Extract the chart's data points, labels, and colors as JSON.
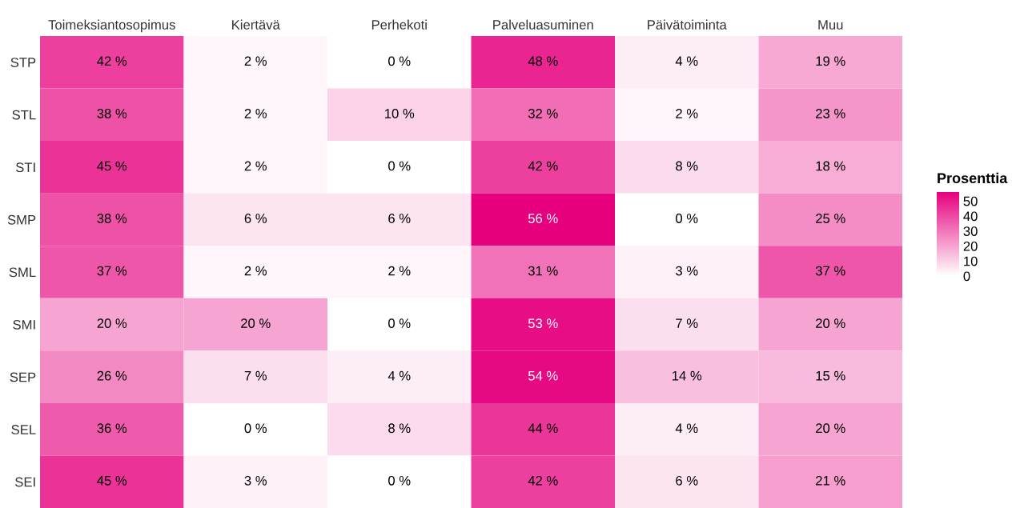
{
  "chart_data": {
    "type": "heatmap",
    "legend_title": "Prosenttia",
    "categories": [
      "Toimeksiantosopimus",
      "Kiertävä",
      "Perhekoti",
      "Palveluasuminen",
      "Päivätoiminta",
      "Muu"
    ],
    "y_categories": [
      "STP",
      "STL",
      "STI",
      "SMP",
      "SML",
      "SMI",
      "SEP",
      "SEL",
      "SEI"
    ],
    "cells": [
      [
        42,
        2,
        0,
        48,
        4,
        19
      ],
      [
        38,
        2,
        10,
        32,
        2,
        23
      ],
      [
        45,
        2,
        0,
        42,
        8,
        18
      ],
      [
        38,
        6,
        6,
        56,
        0,
        25
      ],
      [
        37,
        2,
        2,
        31,
        3,
        37
      ],
      [
        20,
        20,
        0,
        53,
        7,
        20
      ],
      [
        26,
        7,
        4,
        54,
        14,
        15
      ],
      [
        36,
        0,
        8,
        44,
        4,
        20
      ],
      [
        45,
        3,
        0,
        42,
        6,
        21
      ]
    ],
    "cell_labels": [
      [
        "42 %",
        "2 %",
        "0 %",
        "48 %",
        "4 %",
        "19 %"
      ],
      [
        "38 %",
        "2 %",
        "10 %",
        "32 %",
        "2 %",
        "23 %"
      ],
      [
        "45 %",
        "2 %",
        "0 %",
        "42 %",
        "8 %",
        "18 %"
      ],
      [
        "38 %",
        "6 %",
        "6 %",
        "56 %",
        "0 %",
        "25 %"
      ],
      [
        "37 %",
        "2 %",
        "2 %",
        "31 %",
        "3 %",
        "37 %"
      ],
      [
        "20 %",
        "20 %",
        "0 %",
        "53 %",
        "7 %",
        "20 %"
      ],
      [
        "26 %",
        "7 %",
        "4 %",
        "54 %",
        "14 %",
        "15 %"
      ],
      [
        "36 %",
        "0 %",
        "8 %",
        "44 %",
        "4 %",
        "20 %"
      ],
      [
        "45 %",
        "3 %",
        "0 %",
        "42 %",
        "6 %",
        "21 %"
      ]
    ],
    "clim": [
      0,
      56
    ],
    "cticks": [
      0,
      10,
      20,
      30,
      40,
      50
    ],
    "colors": [
      "#ffffff",
      "#e6007e"
    ]
  }
}
